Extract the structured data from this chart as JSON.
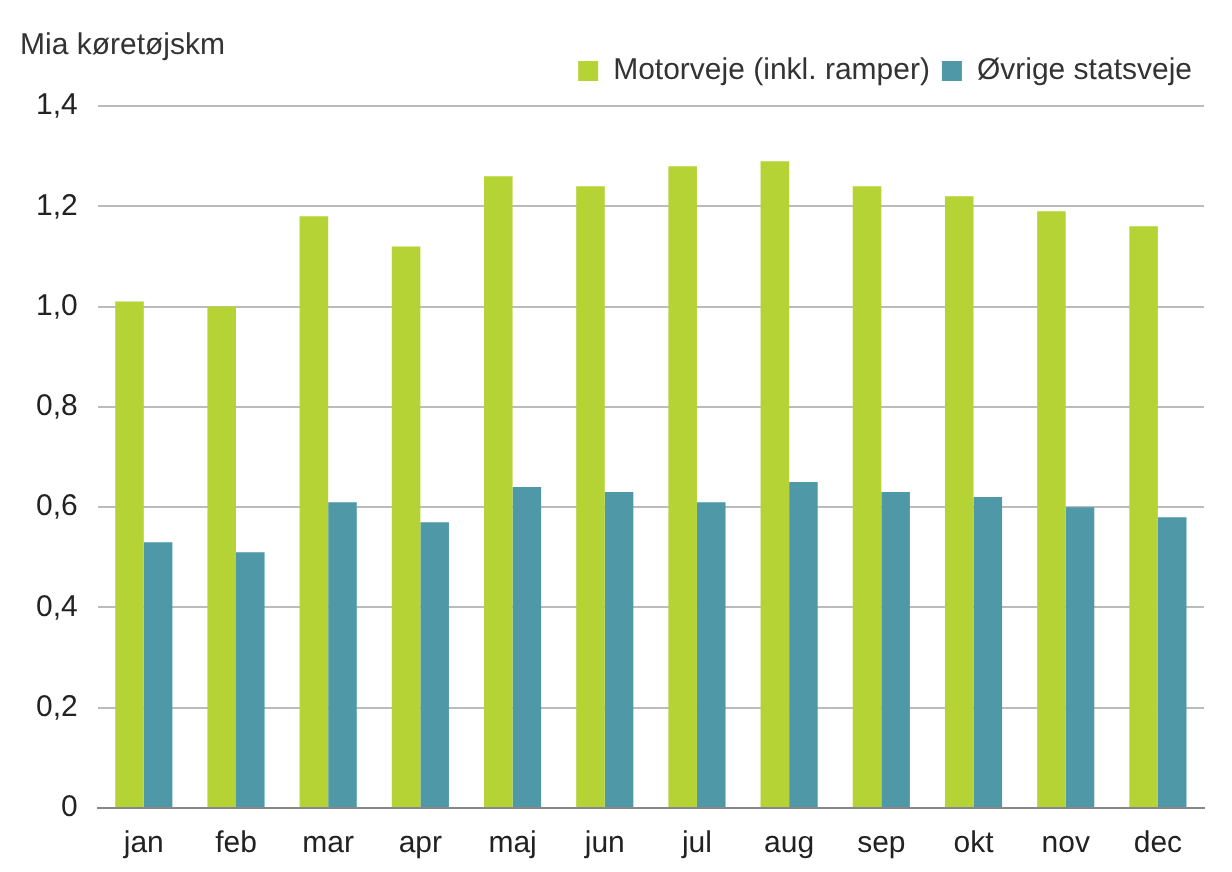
{
  "chart_data": {
    "type": "bar",
    "ylabel": "Mia køretøjskm",
    "categories": [
      "jan",
      "feb",
      "mar",
      "apr",
      "maj",
      "jun",
      "jul",
      "aug",
      "sep",
      "okt",
      "nov",
      "dec"
    ],
    "series": [
      {
        "name": "Motorveje (inkl. ramper)",
        "color": "#b5d334",
        "values": [
          1.01,
          1.0,
          1.18,
          1.12,
          1.26,
          1.24,
          1.28,
          1.29,
          1.24,
          1.22,
          1.19,
          1.16
        ]
      },
      {
        "name": "Øvrige statsveje",
        "color": "#4f98a8",
        "values": [
          0.53,
          0.51,
          0.61,
          0.57,
          0.64,
          0.63,
          0.61,
          0.65,
          0.63,
          0.62,
          0.6,
          0.58
        ]
      }
    ],
    "ylim": [
      0,
      1.4
    ],
    "yticks": [
      0,
      {
        "value": 0.2,
        "label": "0,2"
      },
      {
        "value": 0.4,
        "label": "0,4"
      },
      {
        "value": 0.6,
        "label": "0,6"
      },
      {
        "value": 0.8,
        "label": "0,8"
      },
      {
        "value": 1.0,
        "label": "1,0"
      },
      {
        "value": 1.2,
        "label": "1,2"
      },
      {
        "value": 1.4,
        "label": "1,4"
      }
    ],
    "grid": "y",
    "legend": "top right"
  }
}
